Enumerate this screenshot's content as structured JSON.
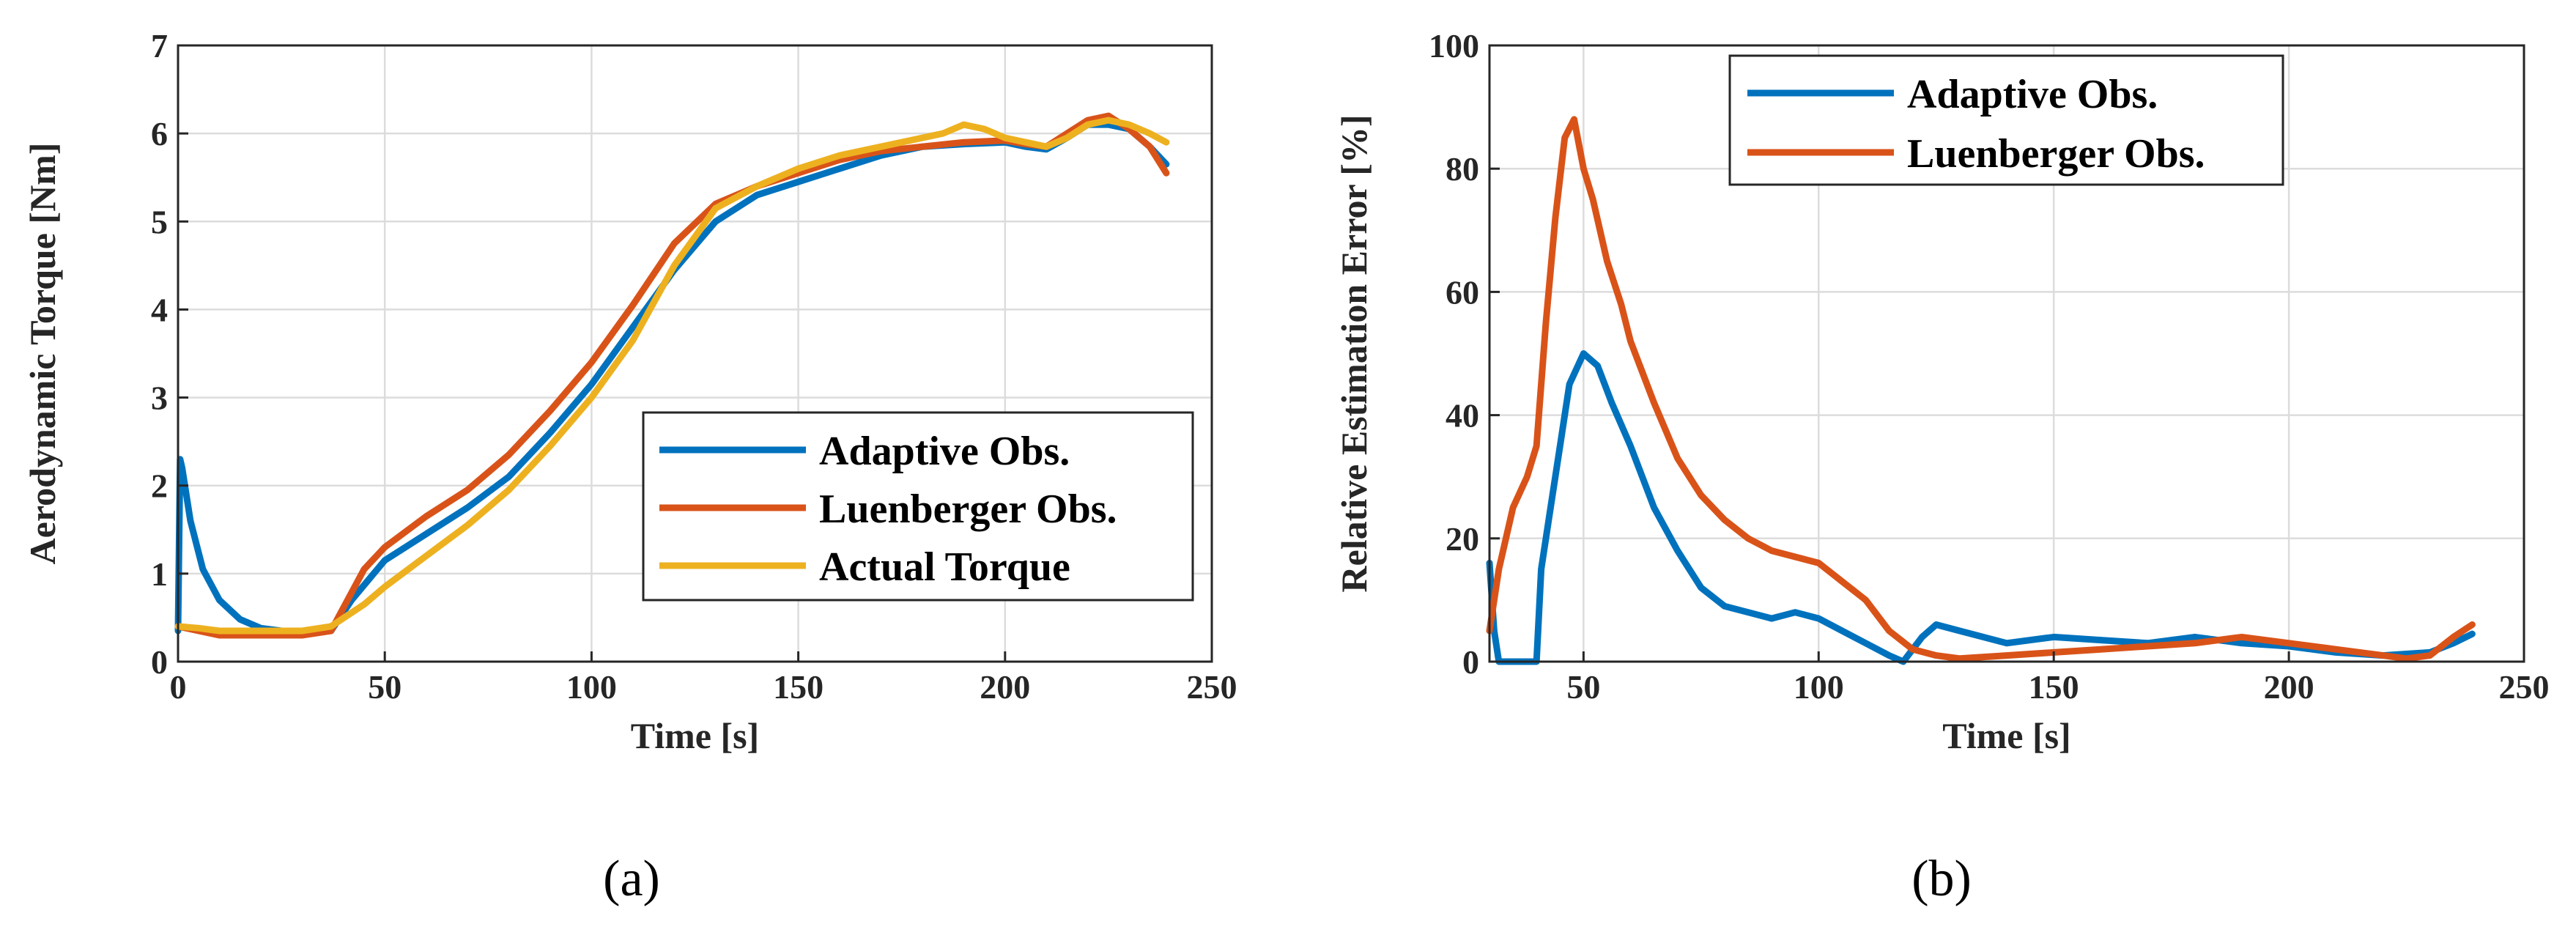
{
  "chart_data": [
    {
      "type": "line",
      "panel": "a",
      "caption": "(a)",
      "xlabel": "Time [s]",
      "ylabel": "Aerodynamic Torque [Nm]",
      "xlim": [
        0,
        250
      ],
      "ylim": [
        0,
        7
      ],
      "xticks": [
        0,
        50,
        100,
        150,
        200,
        250
      ],
      "yticks": [
        0,
        1,
        2,
        3,
        4,
        5,
        6,
        7
      ],
      "grid": true,
      "legend_position": "right-middle",
      "series": [
        {
          "name": "Adaptive Obs.",
          "color": "#0072BD",
          "x": [
            0,
            0.5,
            1,
            3,
            6,
            10,
            15,
            20,
            25,
            30,
            37,
            42,
            50,
            60,
            70,
            80,
            90,
            100,
            110,
            120,
            130,
            140,
            150,
            160,
            170,
            180,
            190,
            200,
            205,
            210,
            215,
            220,
            225,
            230,
            235,
            239
          ],
          "y": [
            0.35,
            2.3,
            2.2,
            1.6,
            1.05,
            0.7,
            0.48,
            0.38,
            0.35,
            0.35,
            0.35,
            0.7,
            1.15,
            1.45,
            1.75,
            2.1,
            2.6,
            3.15,
            3.8,
            4.45,
            5.0,
            5.3,
            5.45,
            5.6,
            5.75,
            5.85,
            5.88,
            5.9,
            5.85,
            5.82,
            5.95,
            6.1,
            6.1,
            6.05,
            5.85,
            5.65
          ]
        },
        {
          "name": "Luenberger Obs.",
          "color": "#D95319",
          "x": [
            0,
            5,
            10,
            20,
            30,
            37,
            45,
            50,
            60,
            70,
            80,
            90,
            100,
            110,
            120,
            130,
            140,
            150,
            160,
            170,
            180,
            190,
            200,
            205,
            210,
            215,
            220,
            225,
            230,
            235,
            239
          ],
          "y": [
            0.4,
            0.35,
            0.3,
            0.3,
            0.3,
            0.35,
            1.05,
            1.3,
            1.65,
            1.95,
            2.35,
            2.85,
            3.4,
            4.05,
            4.75,
            5.2,
            5.4,
            5.55,
            5.7,
            5.8,
            5.85,
            5.9,
            5.92,
            5.88,
            5.85,
            6.0,
            6.15,
            6.2,
            6.05,
            5.85,
            5.55
          ]
        },
        {
          "name": "Actual Torque",
          "color": "#EDB120",
          "x": [
            0,
            5,
            10,
            20,
            30,
            37,
            45,
            50,
            60,
            70,
            80,
            90,
            100,
            110,
            120,
            130,
            140,
            150,
            160,
            170,
            180,
            185,
            190,
            195,
            200,
            205,
            210,
            215,
            220,
            225,
            230,
            235,
            239
          ],
          "y": [
            0.4,
            0.38,
            0.35,
            0.35,
            0.35,
            0.4,
            0.65,
            0.85,
            1.2,
            1.55,
            1.95,
            2.45,
            3.0,
            3.65,
            4.5,
            5.15,
            5.4,
            5.6,
            5.75,
            5.85,
            5.95,
            6.0,
            6.1,
            6.05,
            5.95,
            5.9,
            5.85,
            5.95,
            6.1,
            6.15,
            6.1,
            6.0,
            5.9
          ]
        }
      ]
    },
    {
      "type": "line",
      "panel": "b",
      "caption": "(b)",
      "xlabel": "Time [s]",
      "ylabel": "Relative Estimation Error [%]",
      "xlim": [
        30,
        250
      ],
      "ylim": [
        0,
        100
      ],
      "xticks": [
        50,
        100,
        150,
        200,
        250
      ],
      "yticks": [
        0,
        20,
        40,
        60,
        80,
        100
      ],
      "grid": true,
      "legend_position": "top-middle",
      "series": [
        {
          "name": "Adaptive Obs.",
          "color": "#0072BD",
          "x": [
            30,
            31,
            32,
            35,
            38,
            40,
            41,
            43,
            45,
            47,
            50,
            53,
            56,
            60,
            65,
            70,
            75,
            80,
            85,
            90,
            95,
            100,
            105,
            110,
            115,
            118,
            122,
            125,
            130,
            140,
            150,
            160,
            170,
            180,
            190,
            200,
            210,
            220,
            230,
            235,
            239
          ],
          "y": [
            16,
            5,
            0,
            0,
            0,
            0,
            15,
            25,
            35,
            45,
            50,
            48,
            42,
            35,
            25,
            18,
            12,
            9,
            8,
            7,
            8,
            7,
            5,
            3,
            1,
            0,
            4,
            6,
            5,
            3,
            4,
            3.5,
            3,
            4,
            3,
            2.5,
            1.5,
            1,
            1.5,
            3,
            4.5
          ]
        },
        {
          "name": "Luenberger Obs.",
          "color": "#D95319",
          "x": [
            30,
            32,
            35,
            38,
            40,
            42,
            44,
            46,
            48,
            50,
            52,
            55,
            58,
            60,
            65,
            70,
            75,
            80,
            85,
            90,
            95,
            100,
            105,
            110,
            115,
            120,
            125,
            130,
            140,
            150,
            160,
            170,
            180,
            190,
            200,
            210,
            220,
            225,
            230,
            235,
            239
          ],
          "y": [
            5,
            15,
            25,
            30,
            35,
            55,
            72,
            85,
            88,
            80,
            75,
            65,
            58,
            52,
            42,
            33,
            27,
            23,
            20,
            18,
            17,
            16,
            13,
            10,
            5,
            2,
            1,
            0.5,
            1,
            1.5,
            2,
            2.5,
            3,
            4,
            3,
            2,
            1,
            0.5,
            1,
            4,
            6
          ]
        }
      ]
    }
  ]
}
